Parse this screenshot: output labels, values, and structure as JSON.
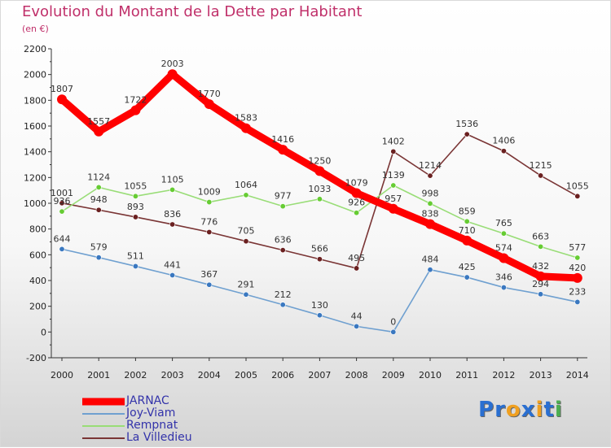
{
  "title": "Evolution du Montant de la Dette par Habitant",
  "subtitle": "(en €)",
  "logo": {
    "letters": [
      "P",
      "r",
      "o",
      "x",
      "i",
      "t",
      "i"
    ],
    "colors": [
      "#2a6fd1",
      "#2a6fd1",
      "#f0a020",
      "#2a6fd1",
      "#f0a020",
      "#2a6fd1",
      "#4caf50"
    ]
  },
  "chart_data": {
    "type": "line",
    "title": "Evolution du Montant de la Dette par Habitant",
    "subtitle": "(en €)",
    "categories": [
      "2000",
      "2001",
      "2002",
      "2003",
      "2004",
      "2005",
      "2006",
      "2007",
      "2008",
      "2009",
      "2010",
      "2011",
      "2012",
      "2013",
      "2014"
    ],
    "ylim": [
      -200,
      2200
    ],
    "yticks": [
      -200,
      0,
      200,
      400,
      600,
      800,
      1000,
      1200,
      1400,
      1600,
      1800,
      2000,
      2200
    ],
    "grid": false,
    "legend_position": "bottom-left",
    "series": [
      {
        "name": "JARNAC",
        "color": "#ff0000",
        "marker": "#ff0000",
        "values": [
          1807,
          1557,
          1722,
          2003,
          1770,
          1583,
          1416,
          1250,
          1079,
          957,
          838,
          710,
          574,
          432,
          420
        ]
      },
      {
        "name": "Joy-Viam",
        "color": "#6fa0d0",
        "marker": "#3a78c0",
        "values": [
          644,
          579,
          511,
          441,
          367,
          291,
          212,
          130,
          44,
          0,
          484,
          425,
          346,
          294,
          233
        ]
      },
      {
        "name": "Rempnat",
        "color": "#99dd77",
        "marker": "#66cc33",
        "values": [
          936,
          1124,
          1055,
          1105,
          1009,
          1064,
          977,
          1033,
          926,
          1139,
          998,
          859,
          765,
          663,
          577
        ]
      },
      {
        "name": "La Villedieu",
        "color": "#7a3535",
        "marker": "#6a2020",
        "values": [
          1001,
          948,
          893,
          836,
          776,
          705,
          636,
          566,
          495,
          1402,
          1214,
          1536,
          1406,
          1215,
          1055
        ]
      }
    ]
  }
}
